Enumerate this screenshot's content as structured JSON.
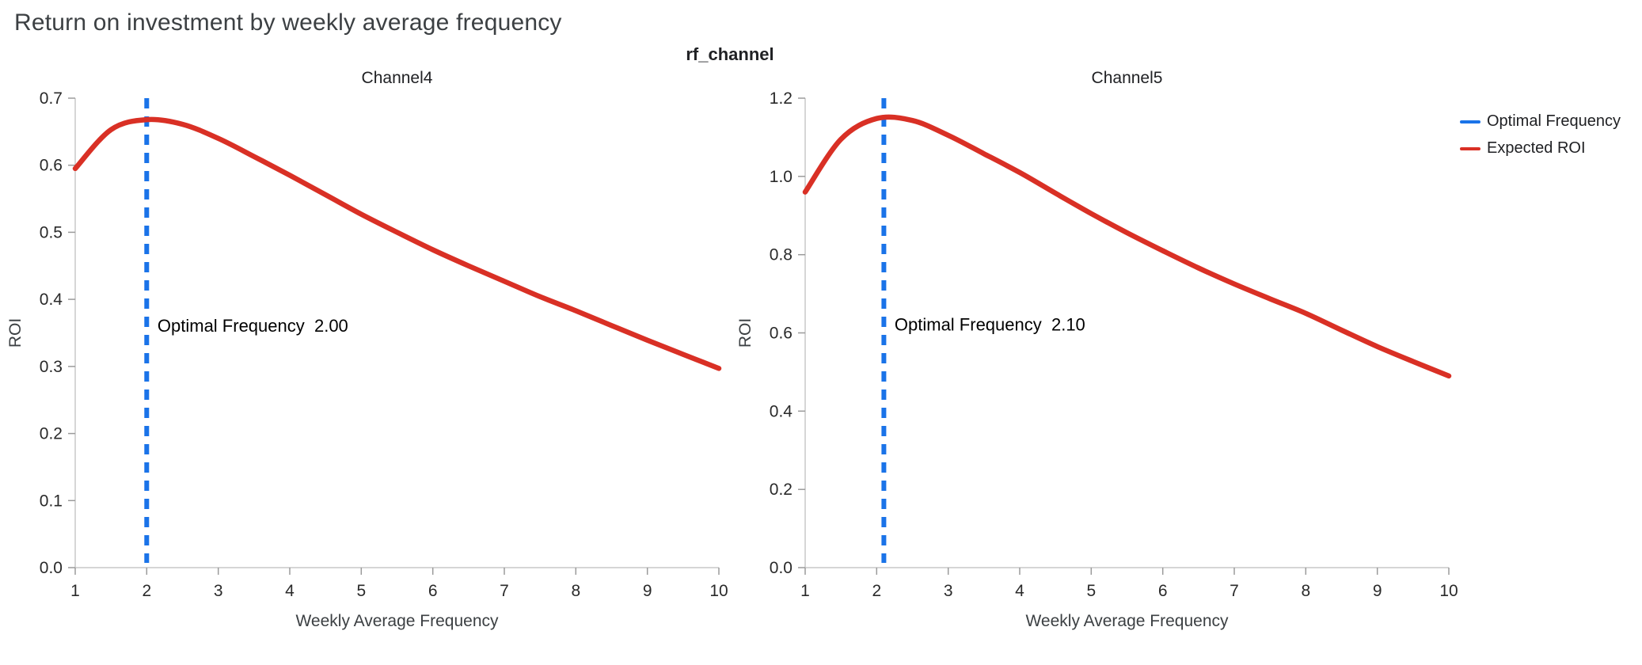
{
  "page": {
    "title": "Return on investment by weekly average frequency"
  },
  "figure": {
    "title": "rf_channel"
  },
  "colors": {
    "optimal_frequency": "#1A73E8",
    "expected_roi": "#D93025"
  },
  "legend": {
    "items": [
      {
        "label": "Optimal Frequency",
        "color": "#1A73E8"
      },
      {
        "label": "Expected ROI",
        "color": "#D93025"
      }
    ]
  },
  "chart_data": [
    {
      "type": "line",
      "title": "Channel4",
      "xlabel": "Weekly Average Frequency",
      "ylabel": "ROI",
      "xlim": [
        1,
        10
      ],
      "ylim": [
        0,
        0.7
      ],
      "xticks": [
        1,
        2,
        3,
        4,
        5,
        6,
        7,
        8,
        9,
        10
      ],
      "yticks": [
        0.0,
        0.1,
        0.2,
        0.3,
        0.4,
        0.5,
        0.6,
        0.7
      ],
      "grid": false,
      "optimal_frequency": 2.0,
      "annotation": {
        "text": "Optimal Frequency  2.00",
        "x": 2.15,
        "y": 0.36
      },
      "series": [
        {
          "name": "Expected ROI",
          "x": [
            1,
            1.5,
            2,
            2.5,
            3,
            3.5,
            4,
            4.5,
            5,
            5.5,
            6,
            6.5,
            7,
            7.5,
            8,
            8.5,
            9,
            9.5,
            10
          ],
          "y": [
            0.595,
            0.653,
            0.668,
            0.661,
            0.64,
            0.613,
            0.585,
            0.556,
            0.527,
            0.5,
            0.474,
            0.45,
            0.427,
            0.404,
            0.383,
            0.361,
            0.339,
            0.318,
            0.297
          ]
        }
      ]
    },
    {
      "type": "line",
      "title": "Channel5",
      "xlabel": "Weekly Average Frequency",
      "ylabel": "ROI",
      "xlim": [
        1,
        10
      ],
      "ylim": [
        0,
        1.2
      ],
      "xticks": [
        1,
        2,
        3,
        4,
        5,
        6,
        7,
        8,
        9,
        10
      ],
      "yticks": [
        0.0,
        0.2,
        0.4,
        0.6,
        0.8,
        1.0,
        1.2
      ],
      "grid": false,
      "optimal_frequency": 2.1,
      "annotation": {
        "text": "Optimal Frequency  2.10",
        "x": 2.25,
        "y": 0.62
      },
      "series": [
        {
          "name": "Expected ROI",
          "x": [
            1,
            1.5,
            2,
            2.5,
            3,
            3.5,
            4,
            4.5,
            5,
            5.5,
            6,
            6.5,
            7,
            7.5,
            8,
            8.5,
            9,
            9.5,
            10
          ],
          "y": [
            0.96,
            1.095,
            1.148,
            1.143,
            1.105,
            1.058,
            1.01,
            0.957,
            0.905,
            0.856,
            0.81,
            0.766,
            0.725,
            0.687,
            0.65,
            0.607,
            0.565,
            0.527,
            0.49
          ]
        }
      ]
    }
  ]
}
